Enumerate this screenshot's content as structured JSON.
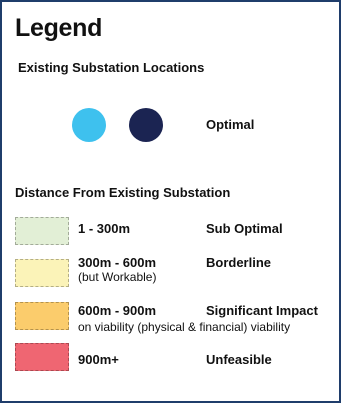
{
  "legend": {
    "title": "Legend",
    "locations_heading": "Existing Substation Locations",
    "optimal_label": "Optimal",
    "dot_colors": [
      "#3ec1ee",
      "#1b2452"
    ],
    "distance_heading": "Distance From Existing Substation",
    "items": [
      {
        "range": "1 - 300m",
        "range_note": "",
        "label": "Sub Optimal",
        "note": "",
        "color": "#e2efd6"
      },
      {
        "range": "300m  -  600m",
        "range_note": "(but Workable)",
        "label": "Borderline",
        "note": "",
        "color": "#fbf3b8"
      },
      {
        "range": "600m  -  900m",
        "range_note": "",
        "label": "Significant Impact",
        "note": "on viability (physical & financial) viability",
        "color": "#fbcc6c"
      },
      {
        "range": "900m+",
        "range_note": "",
        "label": "Unfeasible",
        "note": "",
        "color": "#ef6672"
      }
    ]
  }
}
